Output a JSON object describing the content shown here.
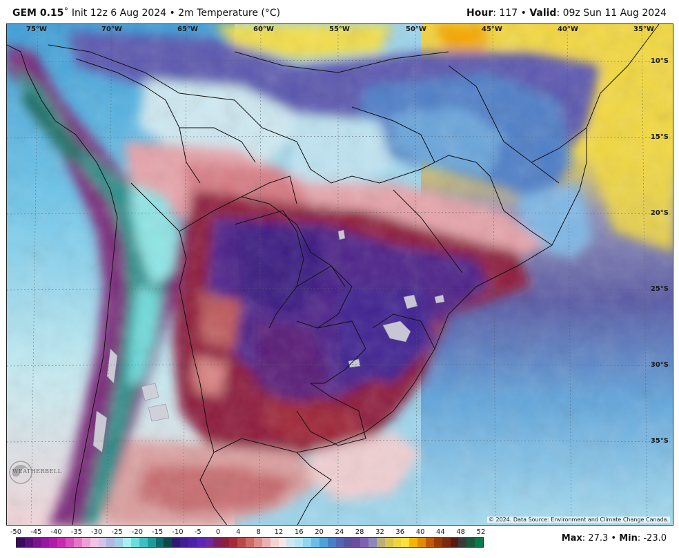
{
  "header": {
    "model": "GEM 0.15",
    "init": "Init 12z 6 Aug 2024",
    "field": "2m Temperature (°C)",
    "hour_label": "Hour",
    "hour_value": ": 117",
    "valid_label": "Valid",
    "valid_value": ": 09z Sun 11 Aug 2024"
  },
  "map": {
    "region": "South America",
    "longitude_labels": [
      "75°W",
      "70°W",
      "65°W",
      "60°W",
      "55°W",
      "50°W",
      "45°W",
      "40°W",
      "35°W"
    ],
    "latitude_labels": [
      "10°S",
      "15°S",
      "20°S",
      "25°S",
      "30°S",
      "35°S"
    ],
    "copyright": "© 2024. Data Source: Environment and Climate Change Canada.",
    "logo_icon": "weatherbell-logo-icon",
    "logo_text": "WEATHERBELL"
  },
  "colorbar": {
    "ticks": [
      "-50",
      "-45",
      "-40",
      "-35",
      "-30",
      "-25",
      "-20",
      "-15",
      "-10",
      "-5",
      "0",
      "4",
      "8",
      "12",
      "16",
      "20",
      "24",
      "28",
      "32",
      "36",
      "40",
      "44",
      "48",
      "52"
    ],
    "colors": [
      "#3b0a5e",
      "#5a0f7a",
      "#7a148f",
      "#95189e",
      "#b01aa8",
      "#c82aaf",
      "#d94cbb",
      "#e476c8",
      "#eea0d6",
      "#f3c3e2",
      "#d0c4e8",
      "#b0b8e0",
      "#9fd0e6",
      "#a8f0f0",
      "#6fdcdc",
      "#3fbfbf",
      "#1f9a9a",
      "#136a6a",
      "#0c4a4a",
      "#2d1a72",
      "#3f1f92",
      "#4a22a8",
      "#5a26b8",
      "#6e2a9a",
      "#7d1f5e",
      "#8e1f3c",
      "#a42a3a",
      "#b8484a",
      "#cc6a68",
      "#dc8c8c",
      "#e8b0b0",
      "#f2d2d2",
      "#f6e6e6",
      "#cfe6ee",
      "#b3e6f2",
      "#8fd6ee",
      "#6bbde6",
      "#4f9fd8",
      "#4a7fc8",
      "#5266b4",
      "#5a53a0",
      "#6a4fa0",
      "#7f61b0",
      "#8d88b8",
      "#b8b078",
      "#d8c450",
      "#f0d43c",
      "#fbe23a",
      "#f6b400",
      "#e08a00",
      "#c05a00",
      "#9a3a00",
      "#7a2a10",
      "#5a1a10",
      "#3a3a3a",
      "#1a5a3a",
      "#0a7a4a"
    ]
  },
  "stats": {
    "max_label": "Max",
    "max_value": ": 27.3 • ",
    "min_label": "Min",
    "min_value": ": -23.0"
  }
}
